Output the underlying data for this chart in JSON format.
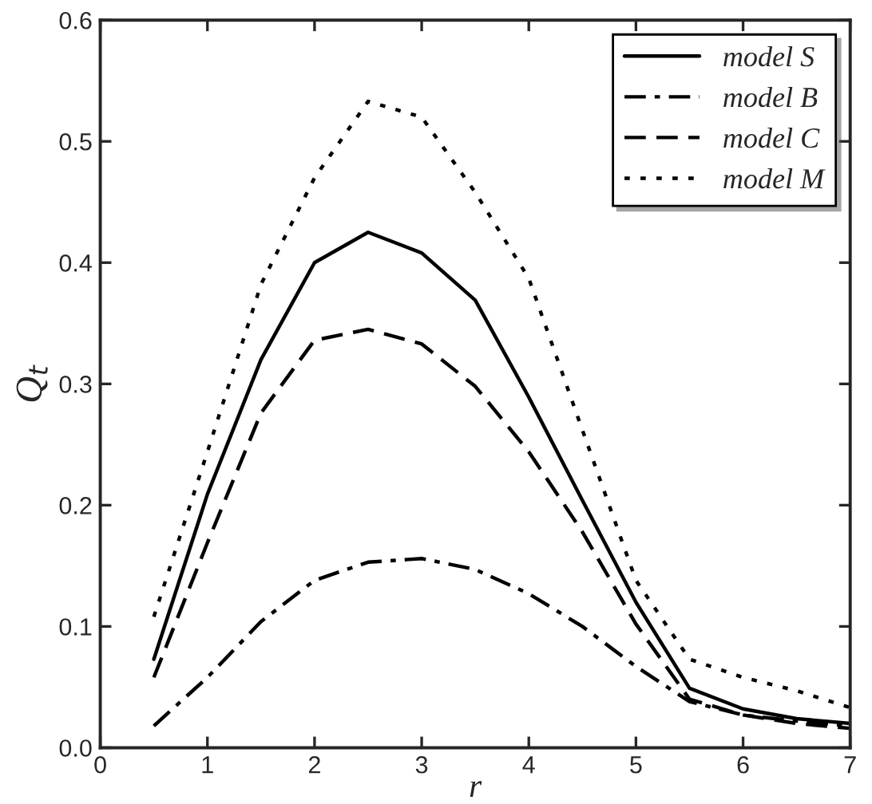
{
  "chart_data": {
    "type": "line",
    "xlabel": "r",
    "ylabel": "Q$_{t}$",
    "x": [
      0.5,
      1,
      1.5,
      2,
      2.5,
      3,
      3.5,
      4,
      4.5,
      5,
      5.5,
      6,
      6.5,
      7
    ],
    "series": [
      {
        "name": "model S",
        "color": "#000000",
        "line_style": "solid",
        "values": [
          0.073,
          0.209,
          0.32,
          0.4,
          0.425,
          0.408,
          0.369,
          0.289,
          0.204,
          0.12,
          0.049,
          0.032,
          0.024,
          0.02
        ]
      },
      {
        "name": "model B",
        "color": "#000000",
        "line_style": "dashdot",
        "values": [
          0.018,
          0.058,
          0.104,
          0.138,
          0.153,
          0.156,
          0.147,
          0.127,
          0.1,
          0.067,
          0.038,
          0.027,
          0.022,
          0.018
        ]
      },
      {
        "name": "model C",
        "color": "#000000",
        "line_style": "dashed",
        "values": [
          0.058,
          0.169,
          0.276,
          0.336,
          0.345,
          0.333,
          0.298,
          0.244,
          0.178,
          0.102,
          0.04,
          0.027,
          0.02,
          0.016
        ]
      },
      {
        "name": "model M",
        "color": "#000000",
        "line_style": "dotted",
        "values": [
          0.108,
          0.244,
          0.382,
          0.47,
          0.533,
          0.52,
          0.458,
          0.387,
          0.262,
          0.138,
          0.073,
          0.058,
          0.047,
          0.033
        ]
      }
    ],
    "xlim": [
      0,
      7
    ],
    "xticks": [
      0,
      1,
      2,
      3,
      4,
      5,
      6,
      7
    ],
    "ylim": [
      0,
      0.6
    ],
    "yticks": [
      {
        "value": 0,
        "label": "0.0"
      },
      0.1,
      0.2,
      0.3,
      0.4,
      0.5,
      0.6
    ],
    "legend": "top right",
    "grid": false
  }
}
